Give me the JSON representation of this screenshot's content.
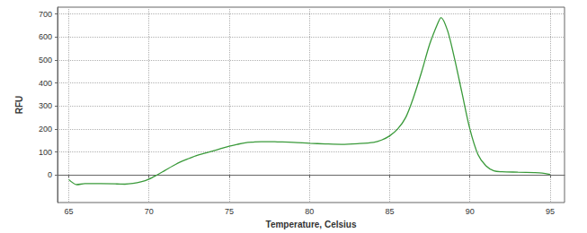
{
  "chart_data": {
    "type": "line",
    "x_label": "Temperature, Celsius",
    "y_label": "RFU",
    "x": [
      65.0,
      65.5,
      66.0,
      67.0,
      68.0,
      68.5,
      69.0,
      69.5,
      70.0,
      70.5,
      71.0,
      71.5,
      72.0,
      72.5,
      73.0,
      73.5,
      74.0,
      74.5,
      75.0,
      75.5,
      76.0,
      76.5,
      77.0,
      77.5,
      78.0,
      79.0,
      80.0,
      81.0,
      82.0,
      83.0,
      84.0,
      84.5,
      85.0,
      85.5,
      86.0,
      86.5,
      87.0,
      87.5,
      88.0,
      88.2,
      88.6,
      89.0,
      89.5,
      90.0,
      90.5,
      91.0,
      91.5,
      92.0,
      93.0,
      94.0,
      94.5,
      95.0
    ],
    "values": [
      -20,
      -42,
      -38,
      -38,
      -39,
      -40,
      -37,
      -30,
      -18,
      0,
      20,
      40,
      58,
      72,
      85,
      95,
      105,
      115,
      125,
      133,
      140,
      143,
      145,
      145,
      144,
      142,
      138,
      135,
      133,
      136,
      142,
      152,
      170,
      200,
      250,
      340,
      450,
      570,
      660,
      685,
      630,
      520,
      360,
      200,
      90,
      40,
      18,
      14,
      12,
      10,
      8,
      2
    ],
    "color": "#3a9a3a",
    "xlim": [
      64.3,
      95.9
    ],
    "ylim": [
      -120,
      730
    ],
    "xticks": [
      65,
      70,
      75,
      80,
      85,
      90,
      95
    ],
    "yticks": [
      0,
      100,
      200,
      300,
      400,
      500,
      600,
      700
    ],
    "grid": true
  }
}
